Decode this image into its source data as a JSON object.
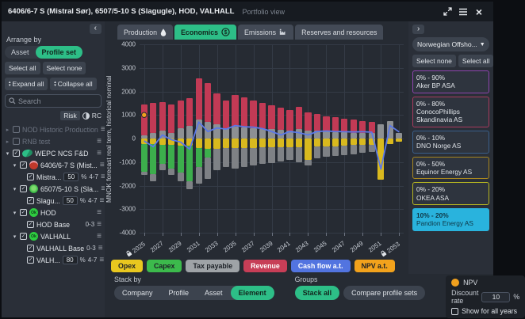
{
  "window": {
    "title": "6406/6-7 S (Mistral Sør), 6507/5-10 S (Slagugle), HOD, VALHALL",
    "subtitle": "Portfolio view"
  },
  "tabs": [
    {
      "label": "Production",
      "icon": "droplet",
      "active": false
    },
    {
      "label": "Economics",
      "icon": "dollar",
      "active": true
    },
    {
      "label": "Emissions",
      "icon": "factory",
      "active": false
    },
    {
      "label": "Reserves and resources",
      "icon": "",
      "active": false
    }
  ],
  "left_panel": {
    "arrange_by_label": "Arrange by",
    "arrange_modes": [
      {
        "label": "Asset",
        "active": false
      },
      {
        "label": "Profile set",
        "active": true
      }
    ],
    "select_buttons": [
      "Select all",
      "Select none"
    ],
    "expand_buttons": [
      "Expand all",
      "Collapse all"
    ],
    "search_placeholder": "Search",
    "risk_toggle": {
      "left": "Risk",
      "right": "RC"
    },
    "tree": [
      {
        "label": "NOD Historic Production",
        "caret": "right",
        "checked": false,
        "disabled": true,
        "indent": 0
      },
      {
        "label": "RNB test",
        "caret": "right",
        "checked": false,
        "disabled": true,
        "indent": 0
      },
      {
        "label": "WEPC NCS F&D",
        "caret": "down",
        "checked": true,
        "indent": 0,
        "icon": "swoosh-green"
      },
      {
        "label": "6406/6-7 S (Mist...",
        "caret": "down",
        "checked": true,
        "indent": 1,
        "icon": "circle-red"
      },
      {
        "label": "Mistra...",
        "checked": true,
        "indent": 2,
        "value": "50",
        "suffix": "%",
        "range": "4-7"
      },
      {
        "label": "6507/5-10 S (Sla...",
        "caret": "down",
        "checked": true,
        "indent": 1,
        "icon": "circle-green"
      },
      {
        "label": "Slagu...",
        "checked": true,
        "indent": 2,
        "value": "50",
        "suffix": "%",
        "range": "4-7"
      },
      {
        "label": "HOD",
        "caret": "down",
        "checked": true,
        "indent": 1,
        "icon": "circle-green-ok"
      },
      {
        "label": "HOD Base",
        "checked": true,
        "indent": 2,
        "range": "0-3"
      },
      {
        "label": "VALHALL",
        "caret": "down",
        "checked": true,
        "indent": 1,
        "icon": "circle-green-ok"
      },
      {
        "label": "VALHALL Base",
        "checked": true,
        "indent": 2,
        "range": "0-3"
      },
      {
        "label": "VALH...",
        "checked": true,
        "indent": 2,
        "value": "80",
        "suffix": "%",
        "range": "4-7"
      }
    ]
  },
  "right_panel": {
    "dropdown": "Norwegian Offsho...",
    "select_buttons": [
      "Select none",
      "Select all"
    ],
    "cards": [
      {
        "range": "0% - 90%",
        "name": "Aker BP ASA",
        "border": "#8e44ad",
        "fill": ""
      },
      {
        "range": "0% - 80%",
        "name": "ConocoPhillips Skandinavia AS",
        "border": "#a83a5e",
        "fill": ""
      },
      {
        "range": "0% - 10%",
        "name": "DNO Norge AS",
        "border": "#3a5f8a",
        "fill": ""
      },
      {
        "range": "0% - 50%",
        "name": "Equinor Energy AS",
        "border": "#a8871f",
        "fill": ""
      },
      {
        "range": "0% - 20%",
        "name": "OKEA ASA",
        "border": "#b5b521",
        "fill": ""
      },
      {
        "range": "10% - 20%",
        "name": "Pandion Energy AS",
        "border": "#29b3dd",
        "fill": "#29b3dd"
      }
    ]
  },
  "legend": [
    {
      "label": "Opex",
      "color": "#e9c71f",
      "text": "#1c2026"
    },
    {
      "label": "Capex",
      "color": "#3cba4c",
      "text": "#1c2026"
    },
    {
      "label": "Tax payable",
      "color": "#9fa3a7",
      "text": "#1c2026"
    },
    {
      "label": "Revenue",
      "color": "#c73e57",
      "text": "#ffffff"
    },
    {
      "label": "Cash flow a.t.",
      "color": "#5274e0",
      "text": "#ffffff"
    },
    {
      "label": "NPV a.t.",
      "color": "#f2a21c",
      "text": "#1c2026"
    }
  ],
  "stack_by": {
    "label": "Stack by",
    "options": [
      {
        "label": "Company",
        "active": false
      },
      {
        "label": "Profile",
        "active": false
      },
      {
        "label": "Asset",
        "active": false
      },
      {
        "label": "Element",
        "active": true
      }
    ]
  },
  "groups": {
    "label": "Groups",
    "options": [
      {
        "label": "Stack all",
        "active": true
      },
      {
        "label": "Compare profile sets",
        "active": false
      }
    ]
  },
  "npv_panel": {
    "title": "NPV",
    "discount_label": "Discount rate",
    "discount_value": "10",
    "discount_unit": "%",
    "checkbox_label": "Show for all years",
    "checked": false
  },
  "chart_data": {
    "type": "bar",
    "subtype": "stacked-bar-with-line",
    "title": "",
    "xlabel": "",
    "ylabel": "MNOK forecast real term, historical nominal",
    "ylim": [
      -4000,
      4000
    ],
    "yticks": [
      4000,
      3000,
      2000,
      1000,
      0,
      -1000,
      -2000,
      -3000,
      -4000
    ],
    "grid": true,
    "categories": [
      2025,
      2026,
      2027,
      2028,
      2029,
      2030,
      2031,
      2032,
      2033,
      2034,
      2035,
      2036,
      2037,
      2038,
      2039,
      2040,
      2041,
      2042,
      2043,
      2044,
      2045,
      2046,
      2047,
      2048,
      2049,
      2050,
      2051,
      2052,
      2053
    ],
    "xtick_years": [
      2025,
      2027,
      2029,
      2031,
      2033,
      2035,
      2037,
      2039,
      2041,
      2043,
      2045,
      2047,
      2049,
      2051,
      2053
    ],
    "locked_years": [
      2025,
      2053
    ],
    "series": [
      {
        "name": "Tax payable (positive)",
        "type": "bar",
        "color": "#8d9093",
        "values": [
          150,
          250,
          350,
          250,
          450,
          550,
          800,
          700,
          600,
          450,
          500,
          480,
          450,
          420,
          400,
          380,
          350,
          400,
          330,
          320,
          300,
          280,
          260,
          250,
          240,
          230,
          600,
          750,
          250
        ]
      },
      {
        "name": "Revenue",
        "type": "bar",
        "color": "#c23a55",
        "values": [
          1300,
          1250,
          1200,
          1200,
          1150,
          1150,
          1750,
          1650,
          1300,
          1150,
          1350,
          1270,
          1150,
          1080,
          1000,
          920,
          850,
          950,
          770,
          730,
          650,
          620,
          590,
          550,
          510,
          470,
          0,
          0,
          0
        ]
      },
      {
        "name": "Opex",
        "type": "bar",
        "color": "#d9b91e",
        "values": [
          -250,
          -250,
          -280,
          -280,
          -300,
          -300,
          -400,
          -450,
          -450,
          -420,
          -420,
          -400,
          -400,
          -380,
          -380,
          -360,
          -360,
          -380,
          -900,
          -350,
          -340,
          -320,
          -300,
          -280,
          -270,
          -260,
          -1750,
          -250,
          -150
        ]
      },
      {
        "name": "Capex",
        "type": "bar",
        "color": "#3cae4c",
        "values": [
          -1150,
          -1250,
          -800,
          -1000,
          -1150,
          -1500,
          -800,
          -350,
          0,
          0,
          0,
          0,
          0,
          0,
          0,
          0,
          0,
          0,
          0,
          0,
          0,
          0,
          0,
          0,
          0,
          0,
          0,
          0,
          0
        ]
      },
      {
        "name": "Tax payable (negative)",
        "type": "bar",
        "color": "#7e8185",
        "values": [
          -150,
          -300,
          -250,
          -250,
          -350,
          -350,
          -700,
          -900,
          -900,
          -800,
          -850,
          -800,
          -750,
          -700,
          -650,
          -600,
          -550,
          -620,
          -250,
          -500,
          -450,
          -420,
          -400,
          -380,
          -350,
          -320,
          0,
          0,
          0
        ]
      },
      {
        "name": "Cash flow a.t.",
        "type": "line",
        "color": "#5b78e8",
        "values": [
          -100,
          -350,
          150,
          -50,
          -150,
          -450,
          700,
          300,
          450,
          400,
          550,
          500,
          480,
          420,
          300,
          150,
          300,
          250,
          150,
          300,
          320,
          300,
          290,
          280,
          290,
          270,
          -1300,
          550,
          280
        ]
      },
      {
        "name": "NPV a.t.",
        "type": "point",
        "color": "#f0a01e",
        "values": [
          1000,
          null,
          null,
          null,
          null,
          null,
          null,
          null,
          null,
          null,
          null,
          null,
          null,
          null,
          null,
          null,
          null,
          null,
          null,
          null,
          null,
          null,
          null,
          null,
          null,
          null,
          null,
          null,
          null
        ]
      }
    ],
    "legend_position": "bottom"
  }
}
